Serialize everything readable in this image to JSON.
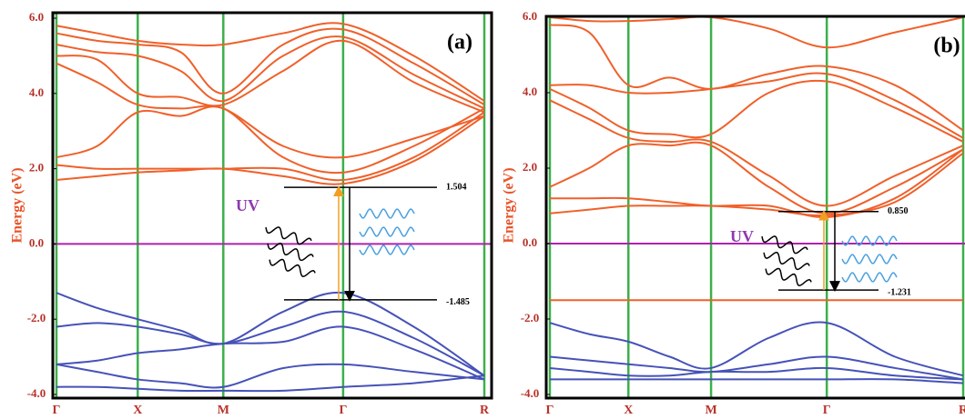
{
  "chart_data": [
    {
      "type": "line",
      "panel_label": "(a)",
      "ylabel": "Energy (eV)",
      "annotation": "UV",
      "xlim": [
        0,
        1
      ],
      "ylim": [
        -4.0,
        6.15
      ],
      "xticks": [
        {
          "value": 0,
          "label": "Γ"
        },
        {
          "value": 0.19,
          "label": "X"
        },
        {
          "value": 0.39,
          "label": "M"
        },
        {
          "value": 0.67,
          "label": "Γ"
        },
        {
          "value": 1.0,
          "label": "R"
        }
      ],
      "yticks": [
        {
          "value": 6,
          "label": "6.0"
        },
        {
          "value": 4,
          "label": "4.0"
        },
        {
          "value": 2,
          "label": "2.0"
        },
        {
          "value": 0,
          "label": "0.0"
        },
        {
          "value": -2,
          "label": "-2.0"
        },
        {
          "value": -4,
          "label": "-4.0"
        }
      ],
      "grid_color": "#3cb04a",
      "reference_line": {
        "value": 0,
        "color": "#b020b0"
      },
      "gap_levels": [
        1.504,
        -1.485
      ],
      "x": [
        0,
        0.095,
        0.19,
        0.29,
        0.39,
        0.53,
        0.67,
        0.835,
        1.0
      ],
      "series": [
        {
          "color": "#f0602a",
          "values": [
            5.8,
            5.6,
            5.4,
            5.3,
            5.3,
            5.6,
            5.85,
            5.0,
            3.8
          ]
        },
        {
          "color": "#f0602a",
          "values": [
            5.6,
            5.4,
            5.3,
            5.1,
            4.0,
            5.3,
            5.7,
            4.8,
            3.7
          ]
        },
        {
          "color": "#f0602a",
          "values": [
            5.3,
            5.1,
            5.0,
            4.6,
            3.8,
            5.0,
            5.5,
            4.5,
            3.6
          ]
        },
        {
          "color": "#f0602a",
          "values": [
            5.0,
            4.9,
            4.0,
            3.9,
            3.7,
            4.6,
            5.4,
            4.3,
            3.5
          ]
        },
        {
          "color": "#f0602a",
          "values": [
            4.8,
            4.3,
            3.7,
            3.6,
            3.6,
            2.6,
            2.3,
            2.8,
            3.4
          ]
        },
        {
          "color": "#f0602a",
          "values": [
            2.3,
            2.6,
            3.5,
            3.4,
            3.6,
            2.3,
            1.9,
            2.6,
            3.6
          ]
        },
        {
          "color": "#f0602a",
          "values": [
            2.1,
            2.0,
            2.0,
            2.0,
            2.0,
            2.0,
            1.7,
            2.3,
            3.5
          ]
        },
        {
          "color": "#f0602a",
          "values": [
            1.7,
            1.8,
            1.9,
            1.95,
            2.0,
            1.8,
            1.6,
            2.2,
            3.4
          ]
        },
        {
          "color": "#4652b8",
          "values": [
            -1.3,
            -1.7,
            -2.0,
            -2.3,
            -2.65,
            -1.8,
            -1.3,
            -2.2,
            -3.5
          ]
        },
        {
          "color": "#4652b8",
          "values": [
            -2.2,
            -2.1,
            -2.2,
            -2.4,
            -2.65,
            -2.2,
            -1.8,
            -2.5,
            -3.5
          ]
        },
        {
          "color": "#4652b8",
          "values": [
            -3.2,
            -3.1,
            -2.9,
            -2.8,
            -2.65,
            -2.6,
            -2.2,
            -2.8,
            -3.6
          ]
        },
        {
          "color": "#4652b8",
          "values": [
            -3.2,
            -3.4,
            -3.6,
            -3.7,
            -3.8,
            -3.3,
            -3.2,
            -3.4,
            -3.6
          ]
        },
        {
          "color": "#4652b8",
          "values": [
            -3.8,
            -3.8,
            -3.85,
            -3.9,
            -3.9,
            -3.9,
            -3.8,
            -3.7,
            -3.5
          ]
        }
      ]
    },
    {
      "type": "line",
      "panel_label": "(b)",
      "ylabel": "Energy (eV)",
      "annotation": "UV",
      "xlim": [
        0,
        1
      ],
      "ylim": [
        -4.0,
        6.05
      ],
      "xticks": [
        {
          "value": 0,
          "label": "Γ"
        },
        {
          "value": 0.19,
          "label": "X"
        },
        {
          "value": 0.39,
          "label": "M"
        },
        {
          "value": 0.67,
          "label": "Γ"
        },
        {
          "value": 1.0,
          "label": "R"
        }
      ],
      "yticks": [
        {
          "value": 6,
          "label": "6.0"
        },
        {
          "value": 4,
          "label": "4.0"
        },
        {
          "value": 2,
          "label": "2.0"
        },
        {
          "value": 0,
          "label": "0.0"
        },
        {
          "value": -2,
          "label": "-2.0"
        },
        {
          "value": -4,
          "label": "-4.0"
        }
      ],
      "grid_color": "#3cb04a",
      "reference_line": {
        "value": 0,
        "color": "#b020b0"
      },
      "gap_levels": [
        {
          "value": 0.85,
          "label": "0.850"
        },
        -1.231
      ],
      "x": [
        0,
        0.095,
        0.19,
        0.29,
        0.39,
        0.53,
        0.67,
        0.835,
        1.0
      ],
      "series": [
        {
          "color": "#f0602a",
          "values": [
            6.0,
            5.9,
            5.9,
            5.95,
            6.0,
            5.7,
            5.2,
            5.6,
            6.0
          ]
        },
        {
          "color": "#f0602a",
          "values": [
            5.8,
            5.6,
            4.2,
            4.4,
            4.1,
            4.5,
            4.7,
            4.2,
            3.0
          ]
        },
        {
          "color": "#f0602a",
          "values": [
            4.2,
            4.2,
            4.0,
            4.0,
            4.1,
            4.3,
            4.5,
            3.8,
            2.8
          ]
        },
        {
          "color": "#f0602a",
          "values": [
            4.1,
            3.6,
            3.0,
            2.9,
            2.9,
            4.0,
            4.3,
            3.6,
            2.7
          ]
        },
        {
          "color": "#f0602a",
          "values": [
            3.8,
            3.3,
            2.8,
            2.7,
            2.7,
            1.8,
            1.0,
            1.8,
            2.6
          ]
        },
        {
          "color": "#f0602a",
          "values": [
            1.5,
            2.0,
            2.6,
            2.6,
            2.6,
            1.5,
            0.8,
            1.5,
            2.5
          ]
        },
        {
          "color": "#f0602a",
          "values": [
            1.2,
            1.2,
            1.2,
            1.1,
            1.0,
            1.0,
            0.7,
            1.2,
            2.5
          ]
        },
        {
          "color": "#f0602a",
          "values": [
            0.8,
            0.9,
            1.0,
            1.0,
            1.0,
            0.9,
            0.75,
            1.1,
            2.4
          ]
        },
        {
          "color": "#f0602a",
          "values": [
            -1.5,
            -1.5,
            -1.5,
            -1.5,
            -1.5,
            -1.5,
            -1.5,
            -1.5,
            -1.5
          ]
        },
        {
          "color": "#4652b8",
          "values": [
            -2.1,
            -2.4,
            -2.6,
            -3.0,
            -3.3,
            -2.5,
            -2.1,
            -3.0,
            -3.5
          ]
        },
        {
          "color": "#4652b8",
          "values": [
            -3.0,
            -3.1,
            -3.2,
            -3.3,
            -3.4,
            -3.2,
            -3.0,
            -3.3,
            -3.6
          ]
        },
        {
          "color": "#4652b8",
          "values": [
            -3.3,
            -3.4,
            -3.5,
            -3.5,
            -3.4,
            -3.4,
            -3.3,
            -3.5,
            -3.6
          ]
        },
        {
          "color": "#4652b8",
          "values": [
            -3.6,
            -3.6,
            -3.6,
            -3.6,
            -3.6,
            -3.6,
            -3.6,
            -3.6,
            -3.7
          ]
        }
      ]
    }
  ]
}
